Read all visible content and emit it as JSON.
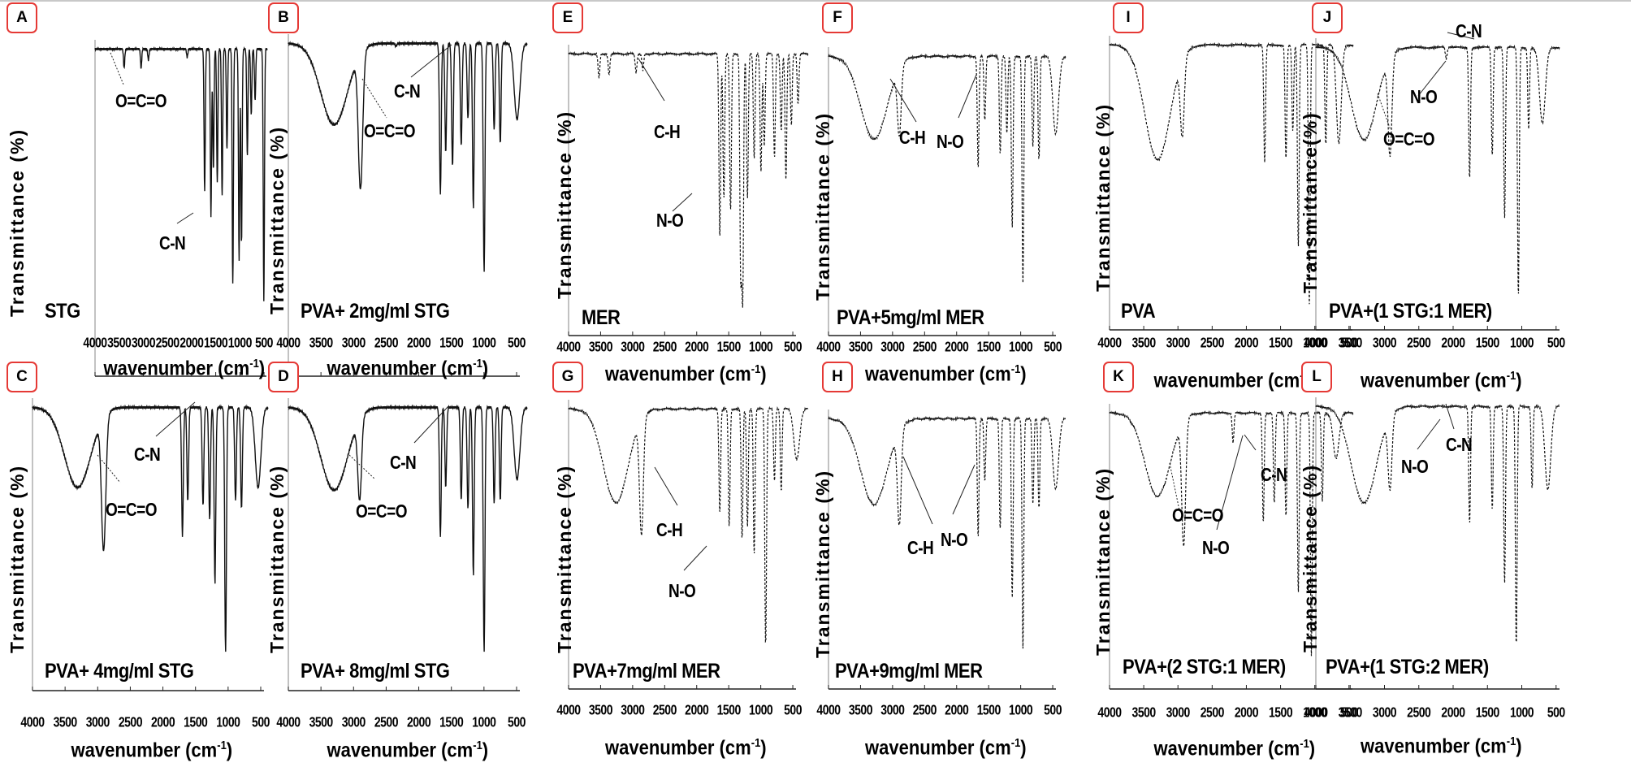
{
  "figure": {
    "x_axis_label": "wavenumber (cm",
    "x_axis_sup": "-1",
    "x_axis_label_close": ")",
    "y_axis_label": "Transmittance (%)",
    "y_axis_label_J": "Transmittance(%)",
    "x_ticks": [
      "4000",
      "3500",
      "3000",
      "2500",
      "2000",
      "1500",
      "1000",
      "500"
    ],
    "badge_color": "#e53935"
  },
  "chart_data": [
    {
      "panel": "A",
      "type": "line",
      "title": "STG",
      "xlabel": "wavenumber (cm-1)",
      "ylabel": "Transmittance (%)",
      "xlim": [
        4000,
        450
      ],
      "x_reversed": true,
      "ylim": [
        0,
        100
      ],
      "line_style": "solid",
      "annotations": [
        "O=C=O",
        "C-N"
      ],
      "bands": [
        [
          3400,
          97,
          90
        ],
        [
          3050,
          99,
          92
        ],
        [
          2900,
          98,
          94
        ],
        [
          2100,
          99,
          96
        ],
        [
          1740,
          99,
          47
        ],
        [
          1610,
          99,
          38
        ],
        [
          1560,
          99,
          55
        ],
        [
          1480,
          99,
          50
        ],
        [
          1380,
          99,
          45
        ],
        [
          1280,
          99,
          62
        ],
        [
          1160,
          99,
          13
        ],
        [
          1030,
          99,
          22
        ],
        [
          980,
          99,
          28
        ],
        [
          860,
          99,
          60
        ],
        [
          780,
          99,
          75
        ],
        [
          700,
          99,
          80
        ],
        [
          520,
          99,
          7
        ]
      ]
    },
    {
      "panel": "B",
      "type": "line",
      "title": "PVA+ 2mg/ml STG",
      "xlabel": "wavenumber (cm-1)",
      "ylabel": "Transmittance (%)",
      "xlim": [
        4000,
        450
      ],
      "x_reversed": true,
      "ylim": [
        0,
        100
      ],
      "line_style": "solid",
      "annotations": [
        "O=C=O",
        "C-N"
      ],
      "bands": [
        [
          3320,
          99,
          70,
          280
        ],
        [
          2940,
          99,
          68,
          40
        ],
        [
          2910,
          99,
          75,
          40
        ],
        [
          2400,
          99,
          98
        ],
        [
          1740,
          99,
          45
        ],
        [
          1660,
          99,
          60
        ],
        [
          1560,
          99,
          55
        ],
        [
          1430,
          99,
          62
        ],
        [
          1330,
          99,
          72
        ],
        [
          1250,
          99,
          40
        ],
        [
          1090,
          99,
          17
        ],
        [
          940,
          99,
          68
        ],
        [
          850,
          99,
          63
        ],
        [
          600,
          99,
          72,
          60
        ]
      ]
    },
    {
      "panel": "C",
      "type": "line",
      "title": "PVA+ 4mg/ml STG",
      "xlabel": "wavenumber (cm-1)",
      "ylabel": "Transmittance (%)",
      "xlim": [
        4000,
        450
      ],
      "x_reversed": true,
      "ylim": [
        0,
        100
      ],
      "line_style": "solid",
      "annotations": [
        "O=C=O",
        "C-N"
      ],
      "bands": [
        [
          3320,
          99,
          70,
          280
        ],
        [
          2940,
          99,
          68,
          40
        ],
        [
          2910,
          99,
          75,
          40
        ],
        [
          1740,
          99,
          52
        ],
        [
          1660,
          99,
          65
        ],
        [
          1430,
          99,
          63
        ],
        [
          1330,
          99,
          58
        ],
        [
          1250,
          99,
          35
        ],
        [
          1090,
          99,
          10
        ],
        [
          940,
          99,
          65
        ],
        [
          850,
          99,
          62
        ],
        [
          600,
          99,
          70,
          60
        ]
      ]
    },
    {
      "panel": "D",
      "type": "line",
      "title": "PVA+ 8mg/ml STG",
      "xlabel": "wavenumber (cm-1)",
      "ylabel": "Transmittance (%)",
      "xlim": [
        4000,
        450
      ],
      "x_reversed": true,
      "ylim": [
        0,
        100
      ],
      "line_style": "solid",
      "annotations": [
        "O=C=O",
        "C-N"
      ],
      "bands": [
        [
          3320,
          99,
          69,
          280
        ],
        [
          2940,
          99,
          70,
          40
        ],
        [
          1740,
          99,
          52
        ],
        [
          1660,
          99,
          70
        ],
        [
          1430,
          99,
          65
        ],
        [
          1330,
          99,
          62
        ],
        [
          1250,
          99,
          38
        ],
        [
          1090,
          99,
          10
        ],
        [
          940,
          99,
          64
        ],
        [
          850,
          99,
          65
        ],
        [
          600,
          99,
          73,
          60
        ]
      ]
    },
    {
      "panel": "E",
      "type": "line",
      "title": "MER",
      "xlabel": "wavenumber (cm-1)",
      "ylabel": "Transmittance (%)",
      "xlim": [
        4000,
        450
      ],
      "x_reversed": true,
      "ylim": [
        0,
        100
      ],
      "line_style": "dotted",
      "annotations": [
        "C-H",
        "N-O"
      ],
      "bands": [
        [
          3550,
          99,
          90
        ],
        [
          3400,
          99,
          91
        ],
        [
          3000,
          99,
          92
        ],
        [
          2900,
          99,
          93
        ],
        [
          1760,
          99,
          30
        ],
        [
          1700,
          99,
          45
        ],
        [
          1600,
          99,
          40
        ],
        [
          1450,
          99,
          18
        ],
        [
          1420,
          99,
          10
        ],
        [
          1350,
          99,
          45
        ],
        [
          1250,
          99,
          60
        ],
        [
          1150,
          99,
          55
        ],
        [
          1100,
          99,
          65
        ],
        [
          950,
          99,
          60
        ],
        [
          850,
          99,
          70
        ],
        [
          780,
          99,
          52
        ],
        [
          700,
          99,
          72
        ],
        [
          600,
          99,
          80
        ]
      ]
    },
    {
      "panel": "F",
      "type": "line",
      "title": "PVA+5mg/ml MER",
      "xlabel": "wavenumber (cm-1)",
      "ylabel": "Transmittance (%)",
      "xlim": [
        4000,
        450
      ],
      "x_reversed": true,
      "ylim": [
        0,
        100
      ],
      "line_style": "dotted",
      "annotations": [
        "C-H",
        "N-O"
      ],
      "bands": [
        [
          3320,
          99,
          68,
          280
        ],
        [
          2940,
          99,
          74,
          40
        ],
        [
          1760,
          99,
          57
        ],
        [
          1660,
          99,
          75
        ],
        [
          1430,
          99,
          62
        ],
        [
          1330,
          99,
          70
        ],
        [
          1250,
          99,
          35
        ],
        [
          1090,
          99,
          14
        ],
        [
          940,
          99,
          65
        ],
        [
          850,
          99,
          60
        ],
        [
          600,
          99,
          70,
          60
        ]
      ]
    },
    {
      "panel": "G",
      "type": "line",
      "title": "PVA+7mg/ml MER",
      "xlabel": "wavenumber (cm-1)",
      "ylabel": "Transmittance (%)",
      "xlim": [
        4000,
        450
      ],
      "x_reversed": true,
      "ylim": [
        0,
        100
      ],
      "line_style": "dotted",
      "annotations": [
        "C-H",
        "N-O"
      ],
      "bands": [
        [
          3300,
          99,
          64,
          260
        ],
        [
          2920,
          99,
          56,
          40
        ],
        [
          1760,
          99,
          60
        ],
        [
          1620,
          99,
          55
        ],
        [
          1430,
          99,
          50
        ],
        [
          1350,
          99,
          55
        ],
        [
          1250,
          99,
          45
        ],
        [
          1080,
          99,
          10
        ],
        [
          950,
          99,
          72
        ],
        [
          850,
          99,
          68
        ],
        [
          620,
          99,
          80,
          60
        ]
      ]
    },
    {
      "panel": "H",
      "type": "line",
      "title": "PVA+9mg/ml MER",
      "xlabel": "wavenumber (cm-1)",
      "ylabel": "Transmittance (%)",
      "xlim": [
        4000,
        450
      ],
      "x_reversed": true,
      "ylim": [
        0,
        100
      ],
      "line_style": "dotted",
      "annotations": [
        "C-H",
        "N-O"
      ],
      "bands": [
        [
          3320,
          99,
          66,
          280
        ],
        [
          2940,
          99,
          63,
          40
        ],
        [
          1760,
          99,
          53
        ],
        [
          1660,
          99,
          75
        ],
        [
          1430,
          99,
          56
        ],
        [
          1250,
          99,
          30
        ],
        [
          1090,
          99,
          10
        ],
        [
          940,
          99,
          66
        ],
        [
          850,
          99,
          64
        ],
        [
          600,
          99,
          72,
          60
        ]
      ]
    },
    {
      "panel": "I",
      "type": "line",
      "title": "PVA",
      "xlabel": "wavenumber (cm-1)",
      "ylabel": "Transmittance (%)",
      "xlim": [
        4000,
        450
      ],
      "x_reversed": true,
      "ylim": [
        0,
        100
      ],
      "line_style": "dotted",
      "annotations": [],
      "bands": [
        [
          3300,
          99,
          58,
          260
        ],
        [
          2940,
          99,
          72,
          40
        ],
        [
          1740,
          99,
          57
        ],
        [
          1430,
          99,
          58
        ],
        [
          1330,
          99,
          68
        ],
        [
          1250,
          99,
          27
        ],
        [
          1090,
          99,
          6
        ],
        [
          850,
          99,
          63
        ],
        [
          660,
          99,
          64,
          50
        ]
      ]
    },
    {
      "panel": "J",
      "type": "line",
      "title": "PVA+(1 STG:1 MER)",
      "xlabel": "wavenumber (cm-1)",
      "ylabel": "Transmittance(%)",
      "xlim": [
        4000,
        450
      ],
      "x_reversed": true,
      "ylim": [
        0,
        100
      ],
      "line_style": "dotted",
      "annotations": [
        "C-N",
        "N-O",
        "O=C=O"
      ],
      "bands": [
        [
          3300,
          99,
          66,
          260
        ],
        [
          2920,
          99,
          64,
          40
        ],
        [
          2100,
          99,
          95
        ],
        [
          1760,
          99,
          52
        ],
        [
          1430,
          99,
          60
        ],
        [
          1250,
          99,
          38
        ],
        [
          1050,
          99,
          10
        ],
        [
          900,
          99,
          70
        ],
        [
          700,
          99,
          72,
          60
        ]
      ]
    },
    {
      "panel": "K",
      "type": "line",
      "title": "PVA+(2 STG:1 MER)",
      "xlabel": "wavenumber (cm-1)",
      "ylabel": "Transmittance (%)",
      "xlim": [
        4000,
        450
      ],
      "x_reversed": true,
      "ylim": [
        0,
        100
      ],
      "line_style": "dotted",
      "annotations": [
        "O=C=O",
        "N-O",
        "C-N"
      ],
      "bands": [
        [
          3300,
          99,
          68,
          260
        ],
        [
          2920,
          99,
          53,
          40
        ],
        [
          2200,
          99,
          88
        ],
        [
          1760,
          99,
          58
        ],
        [
          1600,
          99,
          65
        ],
        [
          1430,
          99,
          60
        ],
        [
          1250,
          99,
          32
        ],
        [
          1060,
          99,
          8
        ],
        [
          900,
          99,
          66
        ],
        [
          700,
          99,
          82,
          60
        ]
      ]
    },
    {
      "panel": "L",
      "type": "line",
      "title": "PVA+(1 STG:2 MER)",
      "xlabel": "wavenumber (cm-1)",
      "ylabel": "Transmittance (%)",
      "xlim": [
        4000,
        450
      ],
      "x_reversed": true,
      "ylim": [
        0,
        100
      ],
      "line_style": "dotted",
      "annotations": [
        "N-O",
        "C-N"
      ],
      "bands": [
        [
          3300,
          99,
          63,
          260
        ],
        [
          2920,
          99,
          72,
          40
        ],
        [
          1760,
          99,
          55
        ],
        [
          1430,
          99,
          60
        ],
        [
          1250,
          99,
          33
        ],
        [
          1080,
          99,
          9
        ],
        [
          850,
          99,
          68
        ],
        [
          620,
          99,
          68,
          60
        ]
      ]
    }
  ],
  "panels": {
    "A": {
      "label": "A",
      "sample": "STG"
    },
    "B": {
      "label": "B",
      "sample": "PVA+ 2mg/ml STG"
    },
    "C": {
      "label": "C",
      "sample": "PVA+ 4mg/ml STG"
    },
    "D": {
      "label": "D",
      "sample": "PVA+ 8mg/ml STG"
    },
    "E": {
      "label": "E",
      "sample": "MER"
    },
    "F": {
      "label": "F",
      "sample": "PVA+5mg/ml MER"
    },
    "G": {
      "label": "G",
      "sample": "PVA+7mg/ml MER"
    },
    "H": {
      "label": "H",
      "sample": "PVA+9mg/ml MER"
    },
    "I": {
      "label": "I",
      "sample": "PVA"
    },
    "J": {
      "label": "J",
      "sample": "PVA+(1 STG:1 MER)"
    },
    "K": {
      "label": "K",
      "sample": "PVA+(2 STG:1 MER)"
    },
    "L": {
      "label": "L",
      "sample": "PVA+(1 STG:2 MER)"
    }
  },
  "annotations": {
    "oco": "O=C=O",
    "cn": "C-N",
    "ch": "C-H",
    "no": "N-O"
  }
}
